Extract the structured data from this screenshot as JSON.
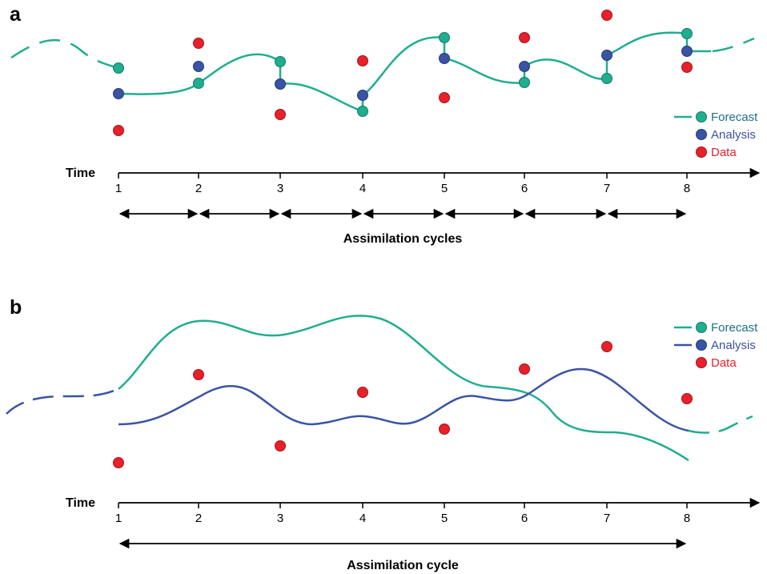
{
  "colors": {
    "forecast": "#1fae8f",
    "analysis": "#3a53a4",
    "data": "#e8202a",
    "forecast_text": "#1f6f86",
    "analysis_text": "#3a53a4",
    "data_text": "#e8202a",
    "axis": "#000000"
  },
  "panel_a": {
    "letter": "a",
    "time_label": "Time",
    "ticks": [
      "1",
      "2",
      "3",
      "4",
      "5",
      "6",
      "7",
      "8"
    ],
    "cycles_label": "Assimilation cycles",
    "legend": {
      "forecast": "Forecast",
      "analysis": "Analysis",
      "data": "Data"
    }
  },
  "panel_b": {
    "letter": "b",
    "time_label": "Time",
    "ticks": [
      "1",
      "2",
      "3",
      "4",
      "5",
      "6",
      "7",
      "8"
    ],
    "cycles_label": "Assimilation cycle",
    "legend": {
      "forecast": "Forecast",
      "analysis": "Analysis",
      "data": "Data"
    }
  }
}
